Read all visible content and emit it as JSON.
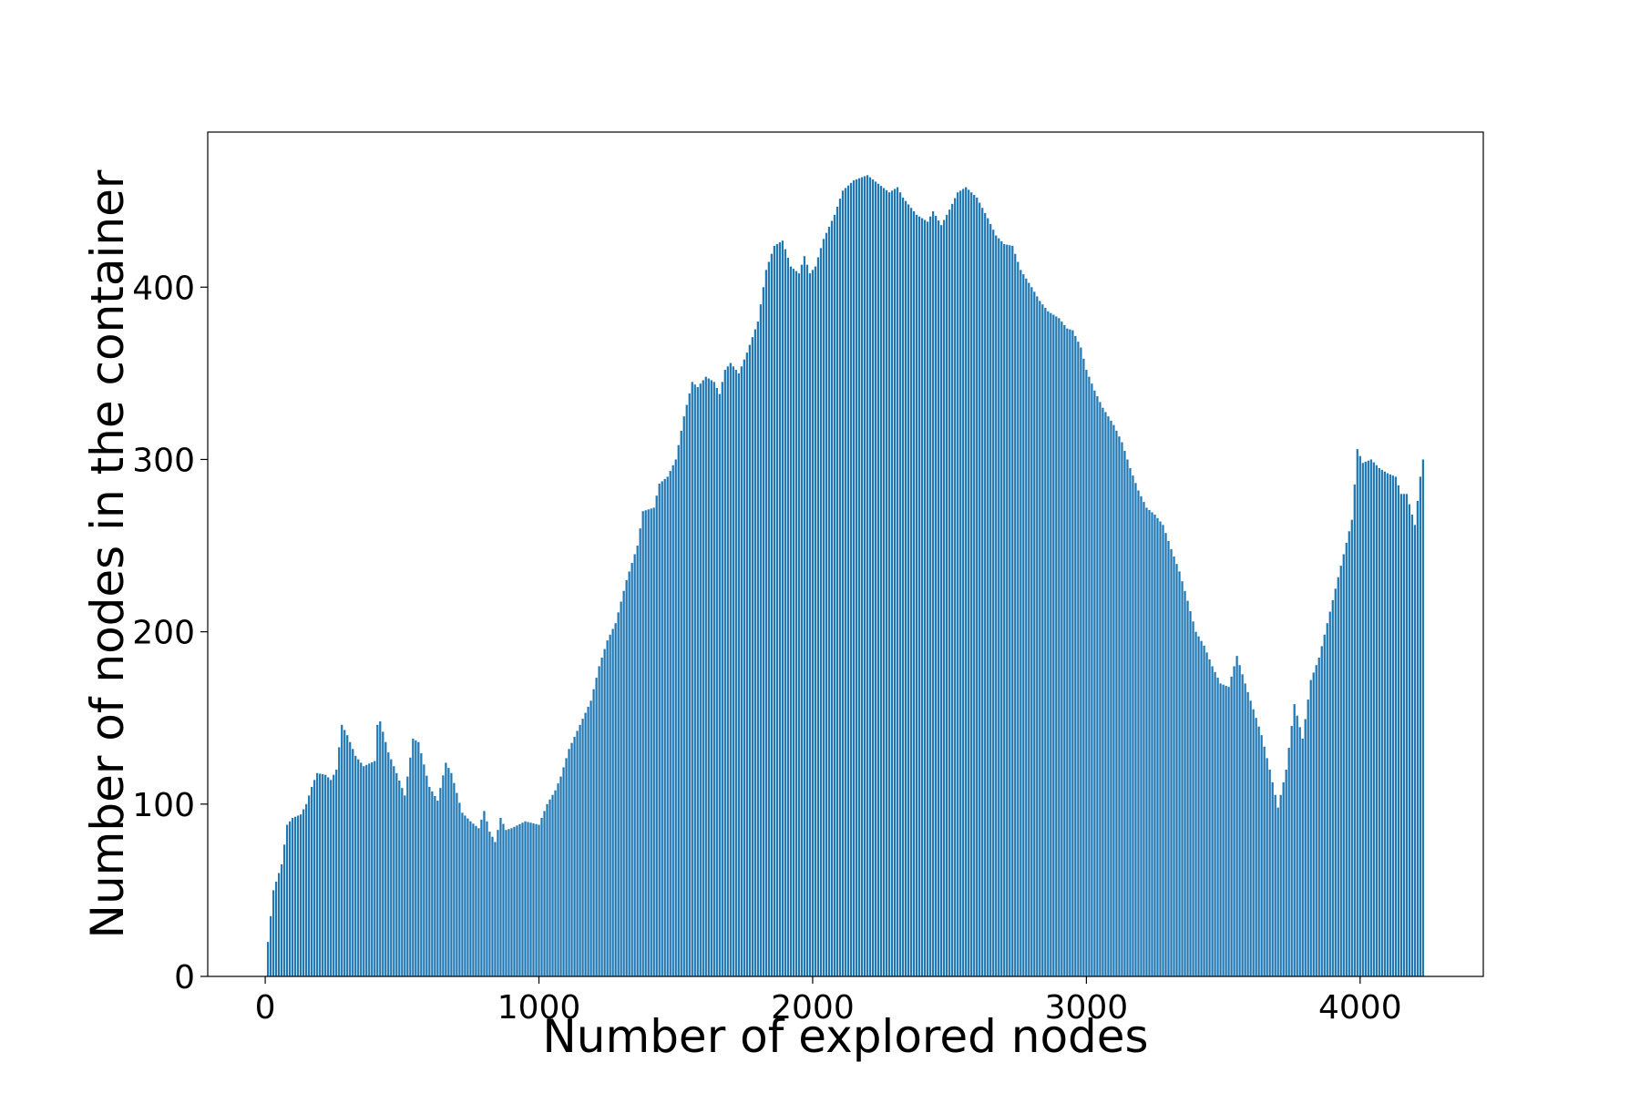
{
  "chart_data": {
    "type": "bar",
    "title": "",
    "xlabel": "Number of explored nodes",
    "ylabel": "Number of nodes in the container",
    "xlim": [
      -210,
      4450
    ],
    "ylim": [
      0,
      490
    ],
    "xticks": [
      0,
      1000,
      2000,
      3000,
      4000
    ],
    "yticks": [
      0,
      100,
      200,
      300,
      400
    ],
    "grid": false,
    "legend": "none",
    "bar_color": "#1f77b4",
    "series": [
      {
        "x_start": 0,
        "x_end": 4230,
        "x_step": 10,
        "keyframes": [
          [
            0,
            0
          ],
          [
            10,
            20
          ],
          [
            30,
            50
          ],
          [
            60,
            65
          ],
          [
            80,
            88
          ],
          [
            100,
            92
          ],
          [
            130,
            94
          ],
          [
            150,
            100
          ],
          [
            170,
            110
          ],
          [
            190,
            118
          ],
          [
            220,
            117
          ],
          [
            240,
            114
          ],
          [
            260,
            120
          ],
          [
            280,
            146
          ],
          [
            300,
            140
          ],
          [
            330,
            128
          ],
          [
            360,
            122
          ],
          [
            400,
            125
          ],
          [
            410,
            146
          ],
          [
            420,
            148
          ],
          [
            450,
            130
          ],
          [
            480,
            118
          ],
          [
            510,
            105
          ],
          [
            540,
            138
          ],
          [
            560,
            136
          ],
          [
            600,
            110
          ],
          [
            630,
            102
          ],
          [
            660,
            124
          ],
          [
            680,
            118
          ],
          [
            720,
            95
          ],
          [
            750,
            90
          ],
          [
            780,
            86
          ],
          [
            800,
            96
          ],
          [
            820,
            84
          ],
          [
            840,
            78
          ],
          [
            860,
            92
          ],
          [
            880,
            85
          ],
          [
            900,
            86
          ],
          [
            950,
            90
          ],
          [
            1000,
            88
          ],
          [
            1030,
            100
          ],
          [
            1060,
            108
          ],
          [
            1080,
            116
          ],
          [
            1110,
            132
          ],
          [
            1150,
            146
          ],
          [
            1190,
            160
          ],
          [
            1220,
            180
          ],
          [
            1250,
            195
          ],
          [
            1280,
            205
          ],
          [
            1320,
            230
          ],
          [
            1360,
            250
          ],
          [
            1380,
            270
          ],
          [
            1420,
            272
          ],
          [
            1440,
            286
          ],
          [
            1470,
            290
          ],
          [
            1500,
            300
          ],
          [
            1530,
            325
          ],
          [
            1560,
            345
          ],
          [
            1580,
            342
          ],
          [
            1610,
            348
          ],
          [
            1640,
            345
          ],
          [
            1660,
            338
          ],
          [
            1680,
            352
          ],
          [
            1700,
            356
          ],
          [
            1730,
            350
          ],
          [
            1760,
            362
          ],
          [
            1800,
            380
          ],
          [
            1830,
            410
          ],
          [
            1860,
            424
          ],
          [
            1890,
            427
          ],
          [
            1920,
            412
          ],
          [
            1950,
            408
          ],
          [
            1970,
            418
          ],
          [
            1990,
            408
          ],
          [
            2010,
            412
          ],
          [
            2040,
            428
          ],
          [
            2080,
            442
          ],
          [
            2110,
            456
          ],
          [
            2150,
            462
          ],
          [
            2200,
            465
          ],
          [
            2240,
            460
          ],
          [
            2280,
            455
          ],
          [
            2310,
            458
          ],
          [
            2330,
            452
          ],
          [
            2350,
            448
          ],
          [
            2380,
            442
          ],
          [
            2420,
            438
          ],
          [
            2440,
            444
          ],
          [
            2470,
            436
          ],
          [
            2500,
            445
          ],
          [
            2530,
            455
          ],
          [
            2560,
            458
          ],
          [
            2600,
            452
          ],
          [
            2640,
            440
          ],
          [
            2670,
            430
          ],
          [
            2700,
            425
          ],
          [
            2730,
            424
          ],
          [
            2760,
            410
          ],
          [
            2800,
            400
          ],
          [
            2830,
            392
          ],
          [
            2860,
            386
          ],
          [
            2900,
            382
          ],
          [
            2930,
            376
          ],
          [
            2950,
            375
          ],
          [
            2980,
            365
          ],
          [
            3000,
            352
          ],
          [
            3030,
            340
          ],
          [
            3060,
            330
          ],
          [
            3100,
            320
          ],
          [
            3130,
            310
          ],
          [
            3160,
            295
          ],
          [
            3190,
            282
          ],
          [
            3220,
            272
          ],
          [
            3250,
            268
          ],
          [
            3280,
            262
          ],
          [
            3310,
            248
          ],
          [
            3340,
            235
          ],
          [
            3370,
            218
          ],
          [
            3400,
            200
          ],
          [
            3430,
            192
          ],
          [
            3460,
            180
          ],
          [
            3490,
            170
          ],
          [
            3520,
            168
          ],
          [
            3550,
            186
          ],
          [
            3580,
            170
          ],
          [
            3610,
            155
          ],
          [
            3640,
            140
          ],
          [
            3670,
            120
          ],
          [
            3700,
            98
          ],
          [
            3730,
            120
          ],
          [
            3760,
            158
          ],
          [
            3790,
            138
          ],
          [
            3820,
            172
          ],
          [
            3850,
            185
          ],
          [
            3880,
            205
          ],
          [
            3910,
            225
          ],
          [
            3940,
            245
          ],
          [
            3970,
            265
          ],
          [
            3990,
            306
          ],
          [
            4010,
            298
          ],
          [
            4040,
            300
          ],
          [
            4070,
            295
          ],
          [
            4100,
            292
          ],
          [
            4130,
            290
          ],
          [
            4150,
            280
          ],
          [
            4170,
            280
          ],
          [
            4200,
            262
          ],
          [
            4220,
            290
          ],
          [
            4230,
            300
          ]
        ]
      }
    ]
  }
}
